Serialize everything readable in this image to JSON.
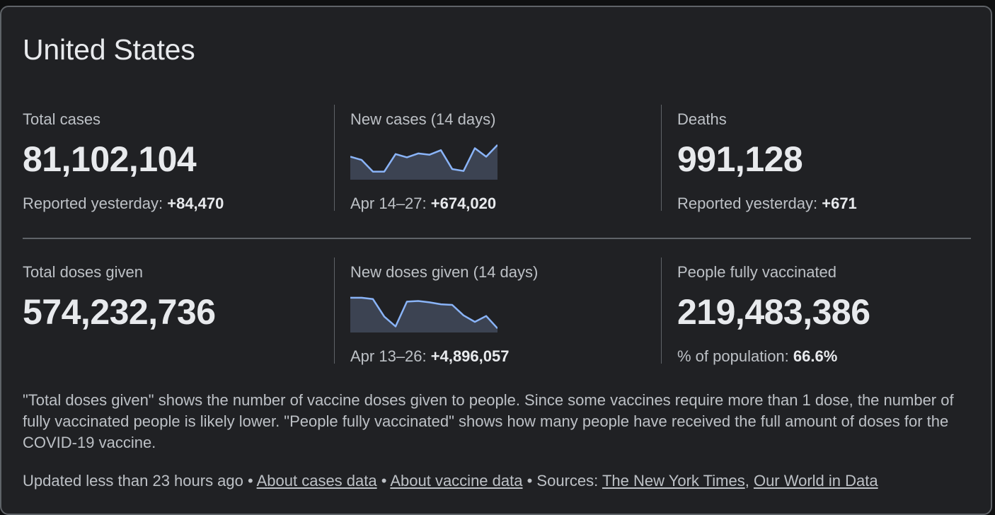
{
  "title": "United States",
  "stats_row1": [
    {
      "label": "Total cases",
      "value": "81,102,104",
      "sub_prefix": "Reported yesterday: ",
      "sub_value": "+84,470"
    },
    {
      "label": "New cases (14 days)",
      "sub_prefix": "Apr 14–27: ",
      "sub_value": "+674,020",
      "sparkline": [
        0.62,
        0.52,
        0.16,
        0.16,
        0.7,
        0.6,
        0.72,
        0.68,
        0.82,
        0.24,
        0.18,
        0.88,
        0.62,
        0.98
      ]
    },
    {
      "label": "Deaths",
      "value": "991,128",
      "sub_prefix": "Reported yesterday: ",
      "sub_value": "+671"
    }
  ],
  "stats_row2": [
    {
      "label": "Total doses given",
      "value": "574,232,736"
    },
    {
      "label": "New doses given (14 days)",
      "sub_prefix": "Apr 13–26: ",
      "sub_value": "+4,896,057",
      "sparkline": [
        0.98,
        0.98,
        0.94,
        0.4,
        0.1,
        0.86,
        0.88,
        0.84,
        0.78,
        0.76,
        0.44,
        0.24,
        0.42,
        0.04
      ]
    },
    {
      "label": "People fully vaccinated",
      "value": "219,483,386",
      "sub_prefix": "% of population: ",
      "sub_value": "66.6%"
    }
  ],
  "note": "\"Total doses given\" shows the number of vaccine doses given to people. Since some vaccines require more than 1 dose, the number of fully vaccinated people is likely lower. \"People fully vaccinated\" shows how many people have received the full amount of doses for the COVID-19 vaccine.",
  "footer": {
    "updated": "Updated less than 23 hours ago",
    "sep": " • ",
    "about_cases": "About cases data",
    "about_vaccine": "About vaccine data",
    "sources_label": "Sources: ",
    "source1": "The New York Times",
    "comma": ", ",
    "source2": "Our World in Data"
  },
  "colors": {
    "sparkline_line": "#8ab4f8",
    "sparkline_fill": "#3c4352"
  }
}
